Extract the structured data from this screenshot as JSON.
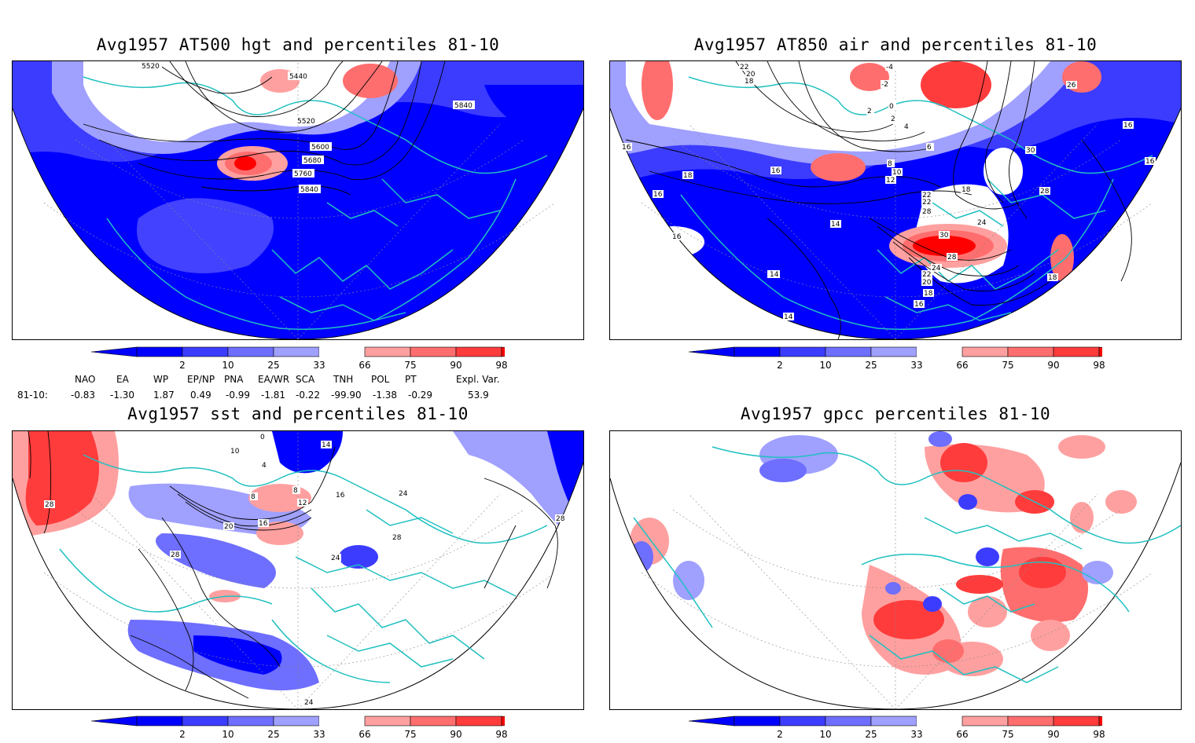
{
  "colors": {
    "low": [
      "#0000ff",
      "#3c3cff",
      "#6e6eff",
      "#a0a0ff"
    ],
    "high": [
      "#ffa0a0",
      "#ff6e6e",
      "#ff3c3c",
      "#ff0000"
    ],
    "coast": "#20c0c0",
    "contour": "#000000"
  },
  "panels": [
    {
      "title": "Avg1957 AT500 hgt and percentiles 81-10",
      "contour_labels": [
        "5520",
        "5440",
        "5840",
        "5520",
        "5600",
        "5680",
        "5760",
        "5840"
      ]
    },
    {
      "title": "Avg1957 AT850 air and percentiles 81-10",
      "contour_labels": [
        "22",
        "20",
        "18",
        "-4",
        "-2",
        "0",
        "2",
        "4",
        "26",
        "2",
        "2",
        "6",
        "16",
        "16",
        "16",
        "16",
        "8",
        "30",
        "10",
        "12",
        "18",
        "18",
        "22",
        "22",
        "28",
        "16",
        "14",
        "28",
        "14",
        "24",
        "16",
        "30",
        "28",
        "24",
        "22",
        "20",
        "18",
        "18",
        "16",
        "14",
        "14"
      ]
    },
    {
      "title": "Avg1957 sst and percentiles 81-10",
      "contour_labels": [
        "0",
        "14",
        "10",
        "4",
        "28",
        "8",
        "8",
        "12",
        "16",
        "20",
        "16",
        "24",
        "24",
        "28",
        "28",
        "28",
        "24"
      ]
    },
    {
      "title": "Avg1957 gpcc percentiles 81-10",
      "contour_labels": []
    }
  ],
  "colorbar_ticks": [
    "2",
    "10",
    "25",
    "33",
    "66",
    "75",
    "90",
    "98"
  ],
  "indices": {
    "headers": [
      "NAO",
      "EA",
      "WP",
      "EP/NP",
      "PNA",
      "EA/WR",
      "SCA",
      "TNH",
      "POL",
      "PT",
      "Expl. Var."
    ],
    "row_label": "81-10:",
    "values": [
      "-0.83",
      "-1.30",
      "1.87",
      "0.49",
      "-0.99",
      "-1.81",
      "-0.22",
      "-99.90",
      "-1.38",
      "-0.29",
      "53.9"
    ]
  }
}
